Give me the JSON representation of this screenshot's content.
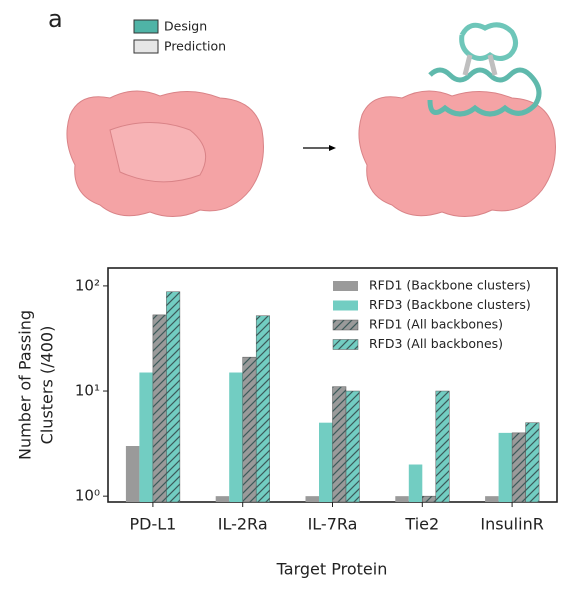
{
  "panel_label": "a",
  "illustration_legend": [
    "Design",
    "Prediction"
  ],
  "chart_data": {
    "type": "bar",
    "log_y": true,
    "categories": [
      "PD-L1",
      "IL-2Ra",
      "IL-7Ra",
      "Tie2",
      "InsulinR"
    ],
    "series": [
      {
        "name": "RFD1 (Backbone clusters)",
        "color": "#9a9a9a",
        "hatch": false,
        "values": [
          3,
          1,
          1,
          1,
          1
        ]
      },
      {
        "name": "RFD3 (Backbone clusters)",
        "color": "#72cdc2",
        "hatch": false,
        "values": [
          15,
          15,
          5,
          2,
          4
        ]
      },
      {
        "name": "RFD1 (All backbones)",
        "color": "#9a9a9a",
        "hatch": true,
        "values": [
          53,
          21,
          11,
          1,
          4
        ]
      },
      {
        "name": "RFD3 (All backbones)",
        "color": "#72cdc2",
        "hatch": true,
        "values": [
          88,
          52,
          10,
          10,
          5
        ]
      }
    ],
    "ylim": [
      0.88,
      148
    ],
    "yticks": [
      {
        "value": 1,
        "label": "10⁰"
      },
      {
        "value": 10,
        "label": "10¹"
      },
      {
        "value": 100,
        "label": "10²"
      }
    ],
    "ylabel": [
      "Number of Passing",
      "Clusters (/400)"
    ],
    "xlabel": "Target Protein",
    "legend": "upper right"
  }
}
